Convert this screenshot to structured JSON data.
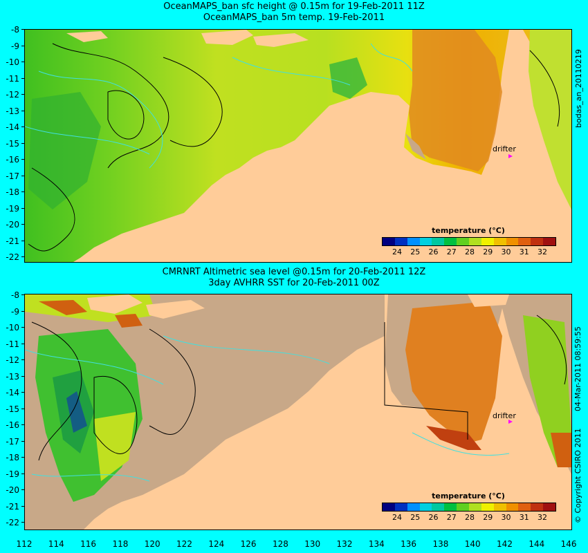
{
  "top_panel": {
    "title_line1": "OceanMAPS_ban sfc height @ 0.15m for 19-Feb-2011 11Z",
    "title_line2": "OceanMAPS_ban 5m temp. 19-Feb-2011",
    "side_label": "bodas_an_20110219"
  },
  "bottom_panel": {
    "title_line1": "CMRNRT Altimetric sea level  @0.15m  for 20-Feb-2011 12Z",
    "title_line2": "3day AVHRR SST for 20-Feb-2011 00Z",
    "side_label": "04-Mar-2011 08:59:55",
    "copyright": "© Copyright CSIRO 2011"
  },
  "drifter_label": "drifter",
  "axes": {
    "y_ticks": [
      "-8",
      "-9",
      "-10",
      "-11",
      "-12",
      "-13",
      "-14",
      "-15",
      "-16",
      "-17",
      "-18",
      "-19",
      "-20",
      "-21",
      "-22"
    ],
    "x_ticks": [
      "112",
      "114",
      "116",
      "118",
      "120",
      "122",
      "124",
      "126",
      "128",
      "130",
      "132",
      "134",
      "136",
      "138",
      "140",
      "142",
      "144",
      "146"
    ]
  },
  "legend": {
    "title": "temperature (°C)",
    "labels": [
      "24",
      "25",
      "26",
      "27",
      "28",
      "29",
      "30",
      "31",
      "32"
    ],
    "colors": [
      "#000080",
      "#0030c0",
      "#0090ff",
      "#00d0e0",
      "#00c8a0",
      "#00c040",
      "#60d020",
      "#b0e020",
      "#f0f000",
      "#f0c000",
      "#f09000",
      "#e06010",
      "#c03010",
      "#a01010"
    ]
  },
  "colors": {
    "background": "#00ffff",
    "land": "#ffcc99",
    "no_data": "#c8a888",
    "contour": "#40e0e0",
    "drifter": "#ff00ff"
  }
}
